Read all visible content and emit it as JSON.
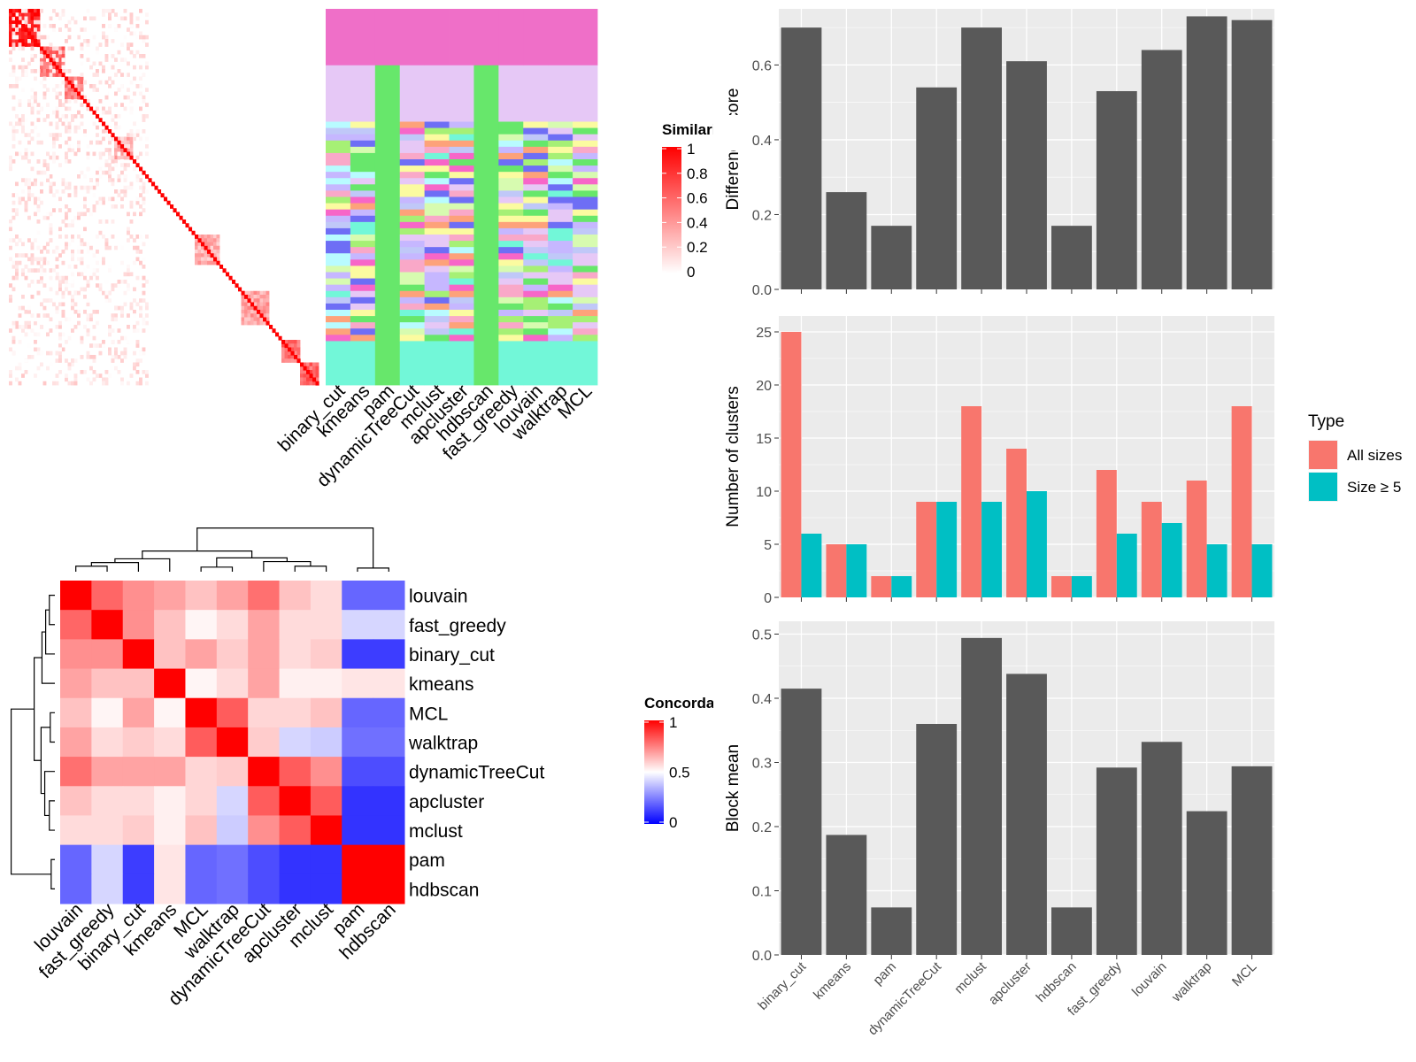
{
  "colors": {
    "panel_bg": "#ebebeb",
    "grid": "#ffffff",
    "bar": "#595959",
    "all_sizes": "#f8766d",
    "size_ge5": "#00bfc4",
    "heat_high": "#ff0000",
    "heat_low": "#ffffff",
    "conc_mid": "#ffffff",
    "conc_low": "#0000ff"
  },
  "similarity_heatmap": {
    "legend_title": "Similarity",
    "legend_ticks": [
      "1",
      "0.8",
      "0.6",
      "0.4",
      "0.2",
      "0"
    ],
    "methods": [
      "binary_cut",
      "kmeans",
      "pam",
      "dynamicTreeCut",
      "mclust",
      "apcluster",
      "hdbscan",
      "fast_greedy",
      "louvain",
      "walktrap",
      "MCL"
    ]
  },
  "concordance_heatmap": {
    "legend_title": "Concordance",
    "legend_ticks": [
      "1",
      "0.5",
      "0"
    ],
    "rows": [
      "louvain",
      "fast_greedy",
      "binary_cut",
      "kmeans",
      "MCL",
      "walktrap",
      "dynamicTreeCut",
      "apcluster",
      "mclust",
      "pam",
      "hdbscan"
    ],
    "columns": [
      "louvain",
      "fast_greedy",
      "binary_cut",
      "kmeans",
      "MCL",
      "walktrap",
      "dynamicTreeCut",
      "apcluster",
      "mclust",
      "pam",
      "hdbscan"
    ],
    "values": [
      [
        1.0,
        0.8,
        0.72,
        0.68,
        0.62,
        0.68,
        0.78,
        0.62,
        0.57,
        0.2,
        0.2
      ],
      [
        0.8,
        1.0,
        0.72,
        0.62,
        0.52,
        0.57,
        0.68,
        0.57,
        0.57,
        0.42,
        0.42
      ],
      [
        0.72,
        0.72,
        1.0,
        0.62,
        0.68,
        0.6,
        0.68,
        0.57,
        0.6,
        0.12,
        0.12
      ],
      [
        0.68,
        0.62,
        0.62,
        1.0,
        0.52,
        0.57,
        0.68,
        0.53,
        0.53,
        0.55,
        0.55
      ],
      [
        0.62,
        0.52,
        0.68,
        0.52,
        1.0,
        0.82,
        0.58,
        0.58,
        0.62,
        0.2,
        0.2
      ],
      [
        0.68,
        0.57,
        0.6,
        0.57,
        0.82,
        1.0,
        0.6,
        0.42,
        0.4,
        0.22,
        0.22
      ],
      [
        0.78,
        0.68,
        0.68,
        0.68,
        0.58,
        0.6,
        1.0,
        0.82,
        0.72,
        0.15,
        0.15
      ],
      [
        0.62,
        0.57,
        0.57,
        0.53,
        0.58,
        0.42,
        0.82,
        1.0,
        0.82,
        0.1,
        0.1
      ],
      [
        0.57,
        0.57,
        0.6,
        0.53,
        0.62,
        0.4,
        0.72,
        0.82,
        1.0,
        0.1,
        0.1
      ],
      [
        0.2,
        0.42,
        0.12,
        0.55,
        0.2,
        0.22,
        0.15,
        0.1,
        0.1,
        1.0,
        1.0
      ],
      [
        0.2,
        0.42,
        0.12,
        0.55,
        0.2,
        0.22,
        0.15,
        0.1,
        0.1,
        1.0,
        1.0
      ]
    ]
  },
  "chart_data": [
    {
      "type": "bar",
      "categories": [
        "binary_cut",
        "kmeans",
        "pam",
        "dynamicTreeCut",
        "mclust",
        "apcluster",
        "hdbscan",
        "fast_greedy",
        "louvain",
        "walktrap",
        "MCL"
      ],
      "values": [
        0.7,
        0.26,
        0.17,
        0.54,
        0.7,
        0.61,
        0.17,
        0.53,
        0.64,
        0.73,
        0.72
      ],
      "ylabel": "Difference score",
      "ylim": [
        0,
        0.75
      ],
      "yticks": [
        "0.0",
        "0.2",
        "0.4",
        "0.6"
      ],
      "grid": true
    },
    {
      "type": "bar",
      "categories": [
        "binary_cut",
        "kmeans",
        "pam",
        "dynamicTreeCut",
        "mclust",
        "apcluster",
        "hdbscan",
        "fast_greedy",
        "louvain",
        "walktrap",
        "MCL"
      ],
      "series": [
        {
          "name": "All sizes",
          "values": [
            25,
            5,
            2,
            9,
            18,
            14,
            2,
            12,
            9,
            11,
            18
          ]
        },
        {
          "name": "Size ≥ 5",
          "values": [
            6,
            5,
            2,
            9,
            9,
            10,
            2,
            6,
            7,
            5,
            5
          ]
        }
      ],
      "ylabel": "Number of clusters",
      "ylim": [
        0,
        26.5
      ],
      "yticks": [
        "0",
        "5",
        "10",
        "15",
        "20",
        "25"
      ],
      "legend_title": "Type",
      "legend_position": "right",
      "grid": true
    },
    {
      "type": "bar",
      "categories": [
        "binary_cut",
        "kmeans",
        "pam",
        "dynamicTreeCut",
        "mclust",
        "apcluster",
        "hdbscan",
        "fast_greedy",
        "louvain",
        "walktrap",
        "MCL"
      ],
      "values": [
        0.415,
        0.187,
        0.074,
        0.36,
        0.494,
        0.438,
        0.074,
        0.292,
        0.332,
        0.224,
        0.294
      ],
      "ylabel": "Block mean",
      "ylim": [
        0,
        0.52
      ],
      "yticks": [
        "0.0",
        "0.1",
        "0.2",
        "0.3",
        "0.4",
        "0.5"
      ],
      "grid": true
    }
  ]
}
